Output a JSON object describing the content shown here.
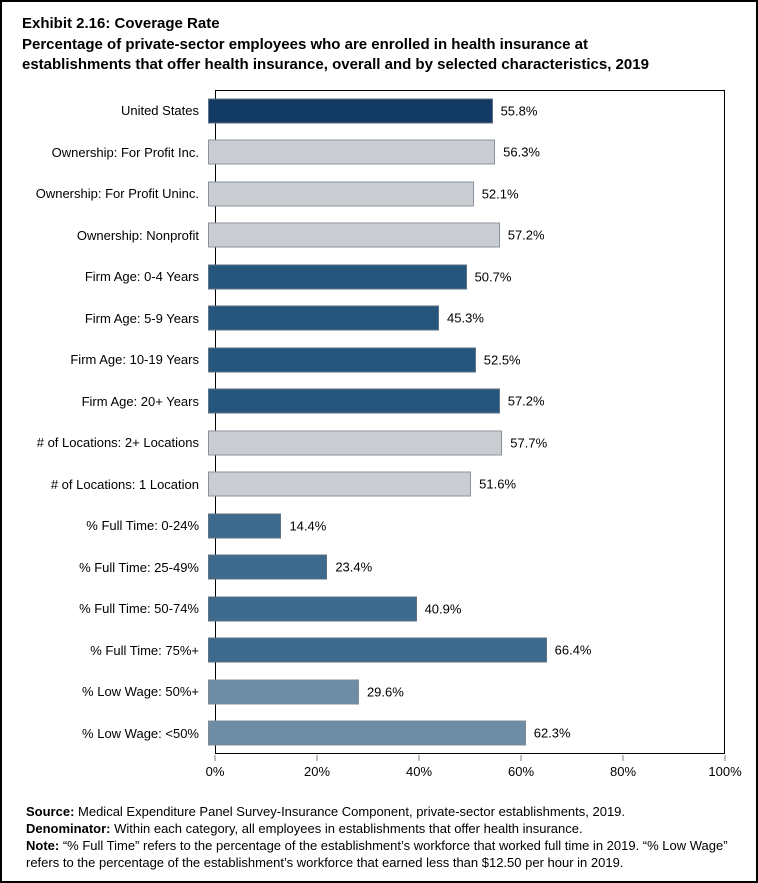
{
  "title": {
    "line1": "Exhibit 2.16: Coverage Rate",
    "line2": "Percentage of private-sector employees who are enrolled in health insurance at",
    "line3": "establishments that offer health insurance, overall and by selected characteristics, 2019"
  },
  "chart_data": {
    "type": "bar",
    "orientation": "horizontal",
    "title": "Exhibit 2.16: Coverage Rate",
    "subtitle": "Percentage of private-sector employees who are enrolled in health insurance at establishments that offer health insurance, overall and by selected characteristics, 2019",
    "xlim": [
      0,
      100
    ],
    "x_ticks": [
      "0%",
      "20%",
      "40%",
      "60%",
      "80%",
      "100%"
    ],
    "grid": false,
    "legend": "none",
    "categories": [
      "United States",
      "Ownership: For Profit Inc.",
      "Ownership: For Profit Uninc.",
      "Ownership: Nonprofit",
      "Firm Age: 0-4 Years",
      "Firm Age: 5-9 Years",
      "Firm Age: 10-19 Years",
      "Firm Age: 20+ Years",
      "# of Locations: 2+ Locations",
      "# of Locations: 1 Location",
      "% Full Time: 0-24%",
      "% Full Time: 25-49%",
      "% Full Time: 50-74%",
      "% Full Time: 75%+",
      "% Low Wage: 50%+",
      "% Low Wage: <50%"
    ],
    "values": [
      55.8,
      56.3,
      52.1,
      57.2,
      50.7,
      45.3,
      52.5,
      57.2,
      57.7,
      51.6,
      14.4,
      23.4,
      40.9,
      66.4,
      29.6,
      62.3
    ],
    "labels": [
      "55.8%",
      "56.3%",
      "52.1%",
      "57.2%",
      "50.7%",
      "45.3%",
      "52.5%",
      "57.2%",
      "57.7%",
      "51.6%",
      "14.4%",
      "23.4%",
      "40.9%",
      "66.4%",
      "29.6%",
      "62.3%"
    ],
    "colors": [
      "#123a62",
      "#c9cdd2",
      "#c9cdd2",
      "#c9cdd2",
      "#26567d",
      "#26567d",
      "#26567d",
      "#26567d",
      "#c9cdd2",
      "#c9cdd2",
      "#3e6a8d",
      "#3e6a8d",
      "#3e6a8d",
      "#3e6a8d",
      "#6d8da7",
      "#6d8da7"
    ],
    "border_colors": [
      "#5f7284",
      "#8a939b",
      "#8a939b",
      "#8a939b",
      "#5f7284",
      "#5f7284",
      "#5f7284",
      "#5f7284",
      "#8a939b",
      "#8a939b",
      "#5f7284",
      "#5f7284",
      "#5f7284",
      "#5f7284",
      "#7d8c99",
      "#7d8c99"
    ]
  },
  "footer": {
    "source_label": "Source:",
    "source_text": " Medical Expenditure Panel Survey-Insurance Component, private-sector establishments, 2019.",
    "denominator_label": "Denominator:",
    "denominator_text": " Within each category, all employees in establishments that offer health insurance.",
    "note_label": "Note:",
    "note_text": " “% Full Time” refers to the percentage of the establishment’s workforce that worked full time in 2019. “% Low Wage” refers to the percentage of the establishment’s workforce that earned less than $12.50 per hour in 2019."
  }
}
